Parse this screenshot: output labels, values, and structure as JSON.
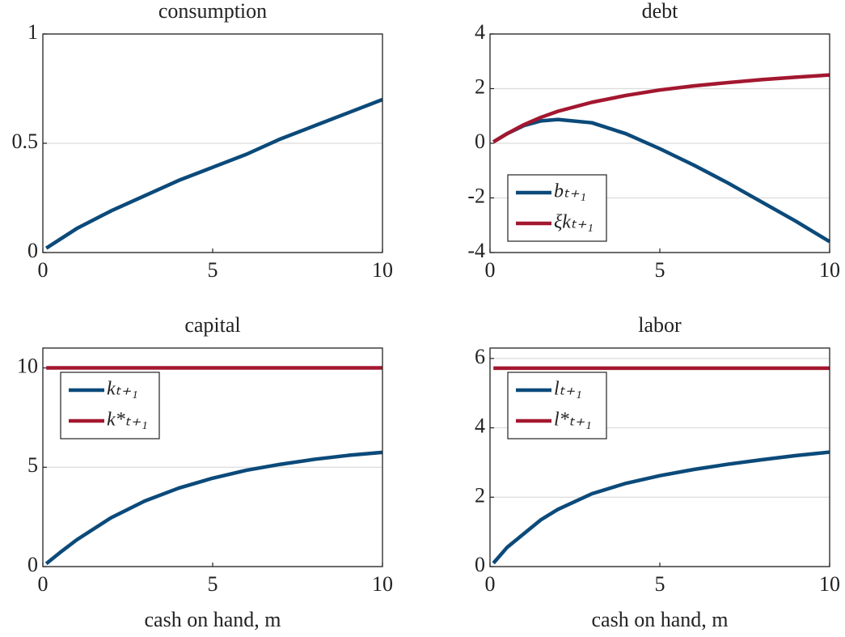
{
  "chart_data": [
    {
      "type": "line",
      "title": "consumption",
      "x": [
        0.1,
        0.5,
        1,
        1.5,
        2,
        3,
        4,
        5,
        6,
        7,
        8,
        9,
        10
      ],
      "series": [
        {
          "color": "#0b4a7a",
          "values": [
            0.02,
            0.06,
            0.11,
            0.15,
            0.19,
            0.26,
            0.33,
            0.39,
            0.45,
            0.52,
            0.58,
            0.64,
            0.7
          ]
        }
      ],
      "xlim": [
        0,
        10
      ],
      "xticks": [
        0,
        5,
        10
      ],
      "ylim": [
        0,
        1
      ],
      "yticks": [
        0,
        0.5,
        1
      ],
      "grid": true
    },
    {
      "type": "line",
      "title": "debt",
      "x": [
        0.1,
        0.5,
        1,
        1.5,
        2,
        3,
        4,
        5,
        6,
        7,
        8,
        9,
        10
      ],
      "series": [
        {
          "name": "bₜ₊₁",
          "color": "#0b4a7a",
          "values": [
            0.05,
            0.35,
            0.65,
            0.82,
            0.87,
            0.75,
            0.35,
            -0.2,
            -0.8,
            -1.45,
            -2.15,
            -2.85,
            -3.6
          ]
        },
        {
          "name": "ξkₜ₊₁",
          "color": "#a3172f",
          "values": [
            0.05,
            0.35,
            0.68,
            0.95,
            1.17,
            1.5,
            1.75,
            1.95,
            2.1,
            2.22,
            2.33,
            2.42,
            2.5
          ]
        }
      ],
      "xlim": [
        0,
        10
      ],
      "xticks": [
        0,
        5,
        10
      ],
      "ylim": [
        -4,
        4
      ],
      "yticks": [
        -4,
        -2,
        0,
        2,
        4
      ],
      "grid": true,
      "legend": "southwest"
    },
    {
      "type": "line",
      "title": "capital",
      "xlabel": "cash on hand, m",
      "x": [
        0.1,
        0.5,
        1,
        1.5,
        2,
        3,
        4,
        5,
        6,
        7,
        8,
        9,
        10
      ],
      "series": [
        {
          "name": "kₜ₊₁",
          "color": "#0b4a7a",
          "values": [
            0.15,
            0.7,
            1.35,
            1.9,
            2.45,
            3.3,
            3.95,
            4.45,
            4.85,
            5.15,
            5.4,
            5.6,
            5.75
          ]
        },
        {
          "name": "k*ₜ₊₁",
          "color": "#a3172f",
          "values": [
            10,
            10,
            10,
            10,
            10,
            10,
            10,
            10,
            10,
            10,
            10,
            10,
            10
          ]
        }
      ],
      "xlim": [
        0,
        10
      ],
      "xticks": [
        0,
        5,
        10
      ],
      "ylim": [
        0,
        11
      ],
      "yticks": [
        0,
        5,
        10
      ],
      "grid": true,
      "legend": "northwest"
    },
    {
      "type": "line",
      "title": "labor",
      "xlabel": "cash on hand, m",
      "x": [
        0.1,
        0.5,
        1,
        1.5,
        2,
        3,
        4,
        5,
        6,
        7,
        8,
        9,
        10
      ],
      "series": [
        {
          "name": "lₜ₊₁",
          "color": "#0b4a7a",
          "values": [
            0.1,
            0.55,
            0.95,
            1.35,
            1.65,
            2.1,
            2.4,
            2.62,
            2.8,
            2.95,
            3.08,
            3.2,
            3.3
          ]
        },
        {
          "name": "l*ₜ₊₁",
          "color": "#a3172f",
          "values": [
            5.72,
            5.72,
            5.72,
            5.72,
            5.72,
            5.72,
            5.72,
            5.72,
            5.72,
            5.72,
            5.72,
            5.72,
            5.72
          ]
        }
      ],
      "xlim": [
        0,
        10
      ],
      "xticks": [
        0,
        5,
        10
      ],
      "ylim": [
        0,
        6.3
      ],
      "yticks": [
        0,
        2,
        4,
        6
      ],
      "grid": true,
      "legend": "northwest"
    }
  ]
}
